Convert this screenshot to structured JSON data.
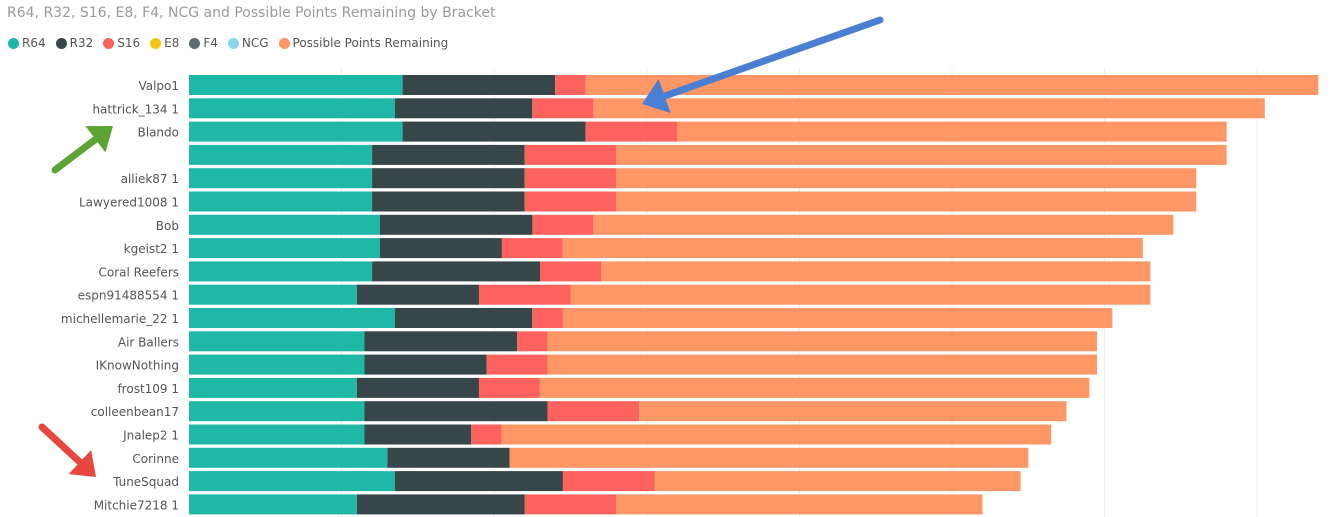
{
  "title": "R64, R32, S16, E8, F4, NCG and Possible Points Remaining by Bracket",
  "colors": {
    "R64": "#1fb8a7",
    "R32": "#374649",
    "S16": "#fd625e",
    "E8": "#f2c80f",
    "F4": "#5f6b6d",
    "NCG": "#8ad4eb",
    "Possible Points Remaining": "#fe9666",
    "arrow_blue": "#4a7fd4",
    "arrow_green": "#5da432",
    "arrow_red": "#e8473e"
  },
  "chart_data": {
    "type": "bar",
    "orientation": "horizontal",
    "stacked": true,
    "title": "R64, R32, S16, E8, F4, NCG and Possible Points Remaining by Bracket",
    "legend_position": "top-left",
    "grid": true,
    "xlim": [
      0,
      150
    ],
    "categories": [
      "Valpo1",
      "hattrick_134 1",
      "Blando",
      "",
      "alliek87 1",
      "Lawyered1008 1",
      "Bob",
      "kgeist2 1",
      "Coral Reefers",
      "espn91488554 1",
      "michellemarie_22 1",
      "Air Ballers",
      "IKnowNothing",
      "frost109 1",
      "colleenbean17",
      "Jnalep2 1",
      "Corinne",
      "TuneSquad",
      "Mitchie7218 1"
    ],
    "series": [
      {
        "name": "R64",
        "values": [
          28,
          27,
          28,
          24,
          24,
          24,
          25,
          25,
          24,
          22,
          27,
          23,
          23,
          22,
          23,
          23,
          26,
          27,
          22
        ]
      },
      {
        "name": "R32",
        "values": [
          20,
          18,
          24,
          20,
          20,
          20,
          20,
          16,
          22,
          16,
          18,
          20,
          16,
          16,
          24,
          14,
          16,
          22,
          22
        ]
      },
      {
        "name": "S16",
        "values": [
          4,
          8,
          12,
          12,
          12,
          12,
          8,
          8,
          8,
          12,
          4,
          4,
          8,
          8,
          12,
          4,
          0,
          12,
          12
        ]
      },
      {
        "name": "E8",
        "values": [
          0,
          0,
          0,
          0,
          0,
          0,
          0,
          0,
          0,
          0,
          0,
          0,
          0,
          0,
          0,
          0,
          0,
          0,
          0
        ]
      },
      {
        "name": "F4",
        "values": [
          0,
          0,
          0,
          0,
          0,
          0,
          0,
          0,
          0,
          0,
          0,
          0,
          0,
          0,
          0,
          0,
          0,
          0,
          0
        ]
      },
      {
        "name": "NCG",
        "values": [
          0,
          0,
          0,
          0,
          0,
          0,
          0,
          0,
          0,
          0,
          0,
          0,
          0,
          0,
          0,
          0,
          0,
          0,
          0
        ]
      },
      {
        "name": "Possible Points Remaining",
        "values": [
          96,
          88,
          72,
          80,
          76,
          76,
          76,
          76,
          72,
          76,
          72,
          72,
          72,
          72,
          56,
          72,
          68,
          48,
          48
        ]
      }
    ]
  }
}
